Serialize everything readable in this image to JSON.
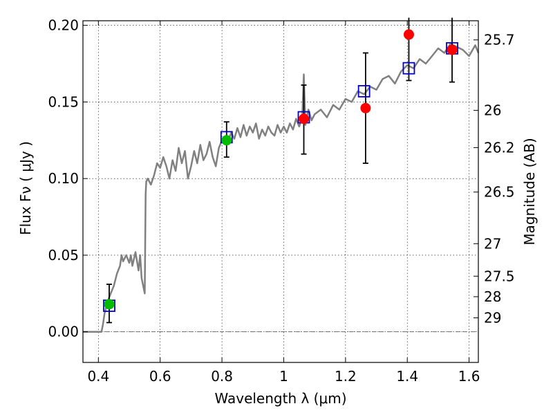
{
  "chart_data": {
    "type": "scatter",
    "xlabel": "Wavelength  λ (μm)",
    "ylabel": "Flux  Fν  ( μJy )",
    "ylabel_right": "Magnitude (AB)",
    "xlim": [
      0.35,
      1.63
    ],
    "ylim": [
      -0.02,
      0.203
    ],
    "xticks": [
      0.4,
      0.6,
      0.8,
      1.0,
      1.2,
      1.4,
      1.6
    ],
    "xtick_labels": [
      "0.4",
      "0.6",
      "0.8",
      "1",
      "1.2",
      "1.4",
      "1.6"
    ],
    "yticks": [
      0.0,
      0.05,
      0.1,
      0.15,
      0.2
    ],
    "ytick_labels": [
      "0.00",
      "0.05",
      "0.10",
      "0.15",
      "0.20"
    ],
    "mag_ticks": [
      {
        "label": "25.7",
        "flux": 0.1905
      },
      {
        "label": "26",
        "flux": 0.1445
      },
      {
        "label": "26.2",
        "flux": 0.1202
      },
      {
        "label": "26.5",
        "flux": 0.0912
      },
      {
        "label": "27",
        "flux": 0.0575
      },
      {
        "label": "27.5",
        "flux": 0.0363
      },
      {
        "label": "28",
        "flux": 0.0229
      },
      {
        "label": "29",
        "flux": 0.0091
      }
    ],
    "grid": true,
    "colors": {
      "model": "#808080",
      "green": "#00bb00",
      "red": "#ff0000",
      "box": "#0000cc",
      "errorbar": "#000000",
      "zero_line": "#555555"
    },
    "series": [
      {
        "type": "line",
        "x": [
          0.35,
          0.41,
          0.415,
          0.42,
          0.43,
          0.44,
          0.45,
          0.46,
          0.47,
          0.475,
          0.48,
          0.49,
          0.5,
          0.505,
          0.51,
          0.52,
          0.53,
          0.535,
          0.54,
          0.55,
          0.553,
          0.555,
          0.56,
          0.57,
          0.58,
          0.59,
          0.6,
          0.61,
          0.62,
          0.63,
          0.64,
          0.65,
          0.66,
          0.67,
          0.68,
          0.69,
          0.7,
          0.71,
          0.72,
          0.73,
          0.74,
          0.75,
          0.76,
          0.77,
          0.78,
          0.79,
          0.8,
          0.81,
          0.82,
          0.83,
          0.84,
          0.85,
          0.86,
          0.87,
          0.88,
          0.89,
          0.9,
          0.91,
          0.92,
          0.93,
          0.94,
          0.95,
          0.96,
          0.97,
          0.98,
          0.99,
          1.0,
          1.01,
          1.02,
          1.03,
          1.04,
          1.05,
          1.06,
          1.065,
          1.07,
          1.08,
          1.09,
          1.1,
          1.12,
          1.14,
          1.16,
          1.18,
          1.2,
          1.22,
          1.24,
          1.26,
          1.28,
          1.3,
          1.32,
          1.34,
          1.36,
          1.38,
          1.4,
          1.42,
          1.44,
          1.46,
          1.48,
          1.5,
          1.52,
          1.54,
          1.56,
          1.58,
          1.6,
          1.62,
          1.63
        ],
        "y": [
          0.0,
          0.0,
          0.005,
          0.012,
          0.02,
          0.025,
          0.03,
          0.038,
          0.043,
          0.05,
          0.046,
          0.05,
          0.045,
          0.05,
          0.043,
          0.052,
          0.04,
          0.05,
          0.035,
          0.025,
          0.09,
          0.098,
          0.1,
          0.096,
          0.102,
          0.11,
          0.107,
          0.114,
          0.108,
          0.1,
          0.112,
          0.105,
          0.12,
          0.11,
          0.118,
          0.1,
          0.108,
          0.118,
          0.11,
          0.122,
          0.112,
          0.116,
          0.124,
          0.114,
          0.108,
          0.12,
          0.125,
          0.126,
          0.124,
          0.13,
          0.126,
          0.133,
          0.127,
          0.135,
          0.128,
          0.134,
          0.13,
          0.136,
          0.126,
          0.132,
          0.128,
          0.134,
          0.13,
          0.128,
          0.135,
          0.13,
          0.134,
          0.13,
          0.136,
          0.132,
          0.139,
          0.134,
          0.14,
          0.168,
          0.135,
          0.145,
          0.138,
          0.142,
          0.145,
          0.14,
          0.148,
          0.145,
          0.152,
          0.15,
          0.157,
          0.155,
          0.16,
          0.158,
          0.165,
          0.167,
          0.162,
          0.17,
          0.174,
          0.172,
          0.178,
          0.175,
          0.18,
          0.185,
          0.182,
          0.188,
          0.186,
          0.184,
          0.18,
          0.187,
          0.182
        ]
      },
      {
        "type": "box",
        "points": [
          {
            "x": 0.435,
            "y": 0.017
          },
          {
            "x": 0.815,
            "y": 0.127
          },
          {
            "x": 1.065,
            "y": 0.14
          },
          {
            "x": 1.26,
            "y": 0.157
          },
          {
            "x": 1.405,
            "y": 0.172
          },
          {
            "x": 1.545,
            "y": 0.185
          }
        ]
      },
      {
        "type": "marker",
        "color": "green",
        "points": [
          {
            "x": 0.435,
            "y": 0.018,
            "ylo": 0.006,
            "yhi": 0.031
          },
          {
            "x": 0.815,
            "y": 0.125,
            "ylo": 0.114,
            "yhi": 0.137
          }
        ]
      },
      {
        "type": "marker",
        "color": "red",
        "points": [
          {
            "x": 1.065,
            "y": 0.139,
            "ylo": 0.116,
            "yhi": 0.161
          },
          {
            "x": 1.265,
            "y": 0.146,
            "ylo": 0.11,
            "yhi": 0.182
          },
          {
            "x": 1.405,
            "y": 0.194,
            "ylo": 0.164,
            "yhi": 0.205
          },
          {
            "x": 1.545,
            "y": 0.184,
            "ylo": 0.163,
            "yhi": 0.205
          }
        ]
      }
    ]
  }
}
